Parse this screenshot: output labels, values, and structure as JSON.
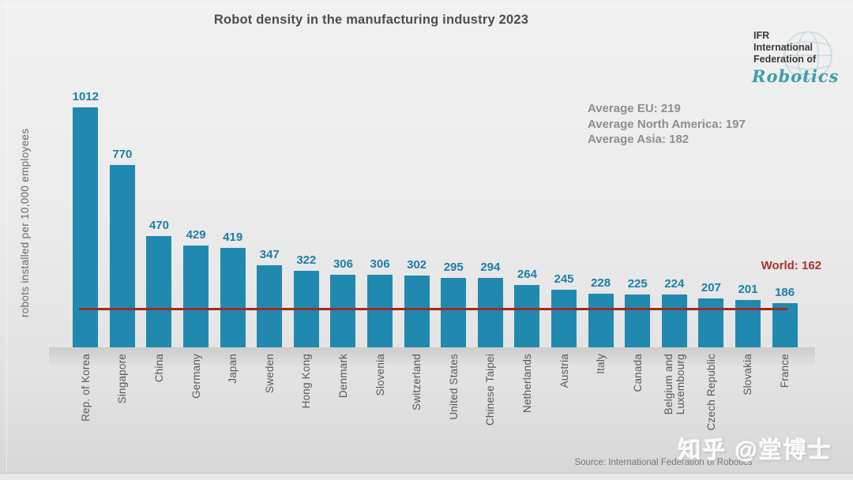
{
  "title": "Robot density in the manufacturing industry 2023",
  "logo": {
    "line1": "IFR",
    "line2": "International",
    "line3": "Federation of",
    "script": "Robotics"
  },
  "ylabel": "robots installed per 10,000 employees",
  "averages": [
    "Average EU: 219",
    "Average North America: 197",
    "Average Asia: 182"
  ],
  "world_label": "World: 162",
  "source": "Source: International Federation of Robotics",
  "watermark": "知乎 @堂博士",
  "colors": {
    "bar": "#2189b0",
    "value_label": "#1b7fa8",
    "world_text": "#a93226",
    "world_line": "#9e2b20"
  },
  "chart_data": {
    "type": "bar",
    "title": "Robot density in the manufacturing industry 2023",
    "ylabel": "robots installed per 10,000 employees",
    "categories": [
      "Rep. of Korea",
      "Singapore",
      "China",
      "Germany",
      "Japan",
      "Sweden",
      "Hong Kong",
      "Denmark",
      "Slovenia",
      "Switzerland",
      "United States",
      "Chinese Taipei",
      "Netherlands",
      "Austria",
      "Italy",
      "Canada",
      "Belgium and\nLuxembourg",
      "Czech Republic",
      "Slovakia",
      "France"
    ],
    "values": [
      1012,
      770,
      470,
      429,
      419,
      347,
      322,
      306,
      306,
      302,
      295,
      294,
      264,
      245,
      228,
      225,
      224,
      207,
      201,
      186
    ],
    "reference_lines": [
      {
        "label": "World: 162",
        "value": 162
      }
    ],
    "annotations": [
      "Average EU: 219",
      "Average North America: 197",
      "Average Asia: 182"
    ],
    "ylim": [
      0,
      1100
    ],
    "grid": false,
    "legend": false,
    "bar_labels": true
  }
}
